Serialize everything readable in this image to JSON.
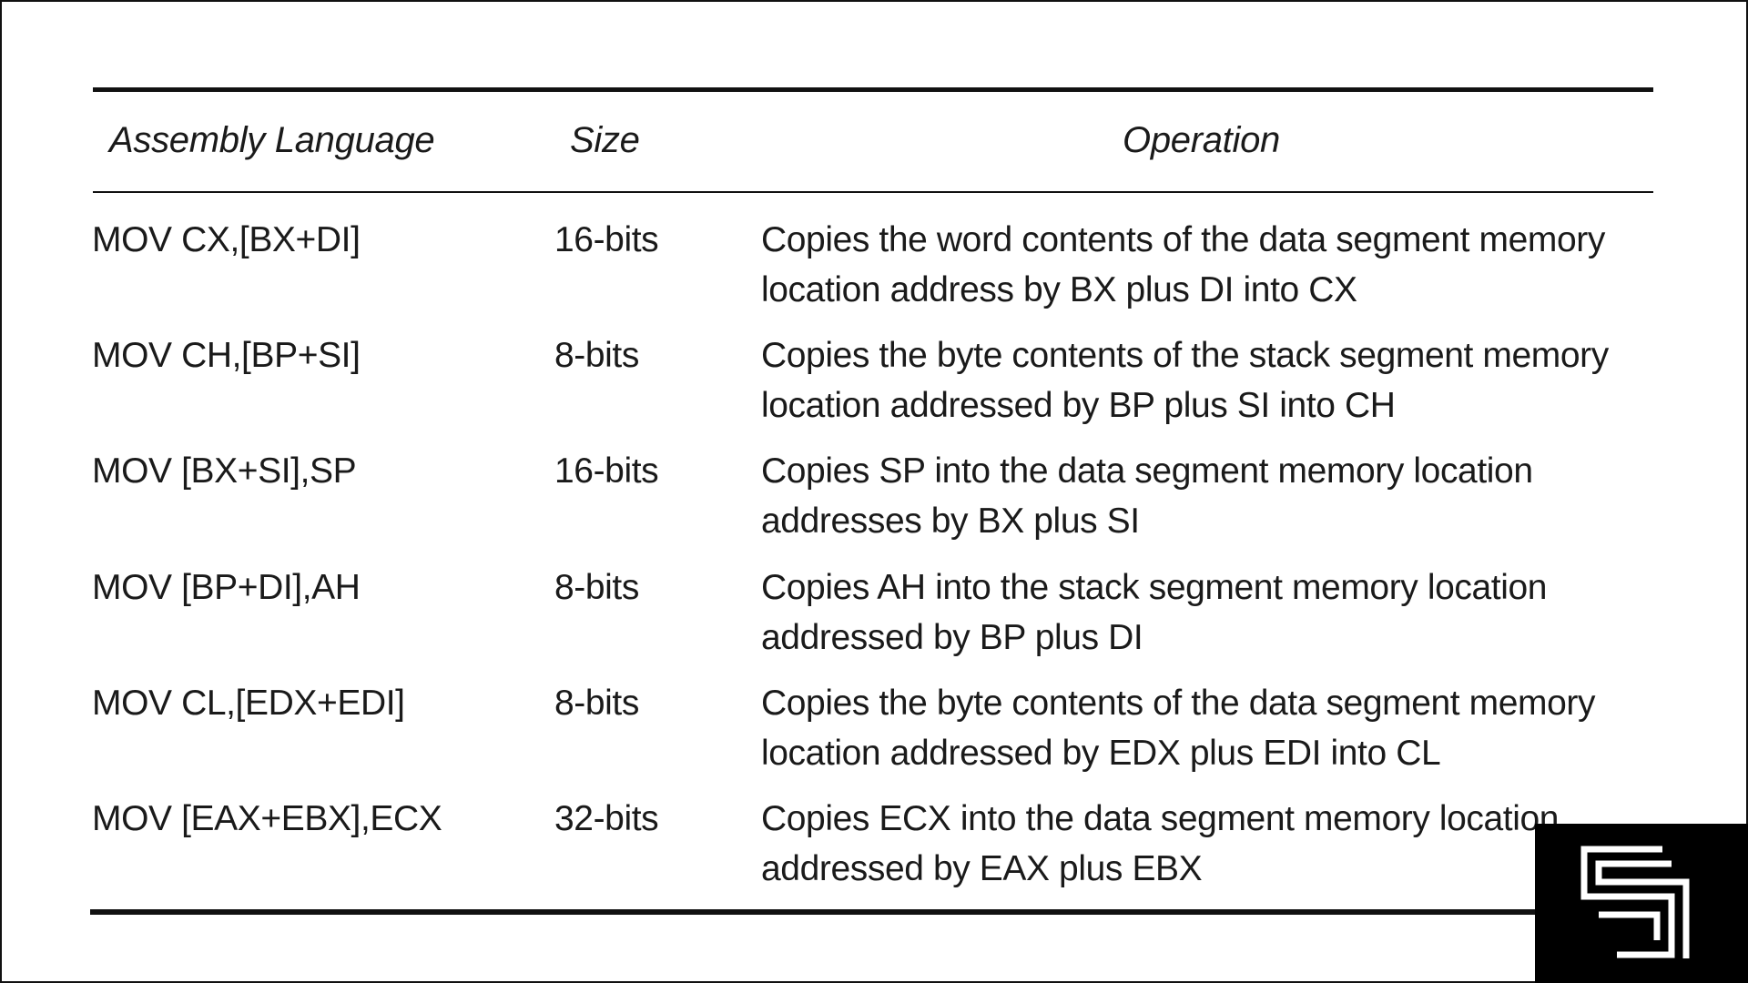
{
  "table": {
    "headers": {
      "assembly": "Assembly Language",
      "size": "Size",
      "operation": "Operation"
    },
    "rows": [
      {
        "assembly": "MOV CX,[BX+DI]",
        "size": "16-bits",
        "operation_line1": "Copies the word contents of the data segment memory",
        "operation_line2": "location address by BX plus DI into CX"
      },
      {
        "assembly": "MOV CH,[BP+SI]",
        "size": "8-bits",
        "operation_line1": "Copies the byte contents of the stack segment memory",
        "operation_line2": "location addressed by BP plus SI into CH"
      },
      {
        "assembly": "MOV [BX+SI],SP",
        "size": "16-bits",
        "operation_line1": "Copies SP into the data segment memory location",
        "operation_line2": "addresses by BX plus SI"
      },
      {
        "assembly": "MOV [BP+DI],AH",
        "size": "8-bits",
        "operation_line1": "Copies AH into the stack segment memory location",
        "operation_line2": "addressed by BP plus DI"
      },
      {
        "assembly": "MOV CL,[EDX+EDI]",
        "size": "8-bits",
        "operation_line1": "Copies the byte contents of the data segment memory",
        "operation_line2": "location addressed by EDX plus EDI into CL"
      },
      {
        "assembly": "MOV [EAX+EBX],ECX",
        "size": "32-bits",
        "operation_line1": "Copies ECX into the data segment memory location",
        "operation_line2": "addressed by EAX plus EBX"
      }
    ]
  },
  "logo": {
    "icon": "channel-logo-icon",
    "color": "#ffffff",
    "background": "#000000"
  }
}
